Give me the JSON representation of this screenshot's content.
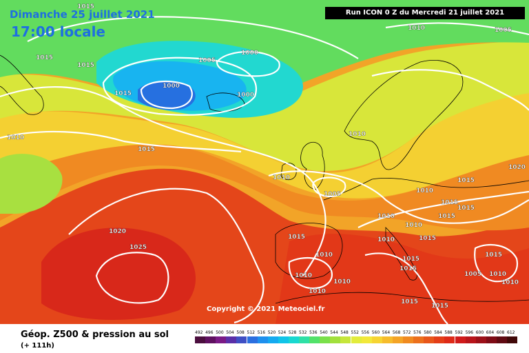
{
  "header": {
    "date": "Dimanche 25 juillet 2021",
    "time": "17:00 locale",
    "run": "Run ICON 0 Z du Mercredi 21 juillet 2021"
  },
  "copyright": "Copyright © 2021 Meteociel.fr",
  "footer": {
    "title": "Géop. Z500 & pression au sol",
    "subtitle": "(+ 111h)"
  },
  "legend": {
    "labels": [
      "492",
      "496",
      "500",
      "504",
      "508",
      "512",
      "516",
      "520",
      "524",
      "528",
      "532",
      "536",
      "540",
      "544",
      "548",
      "552",
      "556",
      "560",
      "564",
      "568",
      "572",
      "576",
      "580",
      "584",
      "588",
      "592",
      "596",
      "600",
      "604",
      "608",
      "612"
    ],
    "colors": [
      "#4b0e3e",
      "#5f1060",
      "#7a1a86",
      "#5a2fa8",
      "#3f4fc4",
      "#2b6fe0",
      "#1e90ee",
      "#14aaf0",
      "#10c4e8",
      "#18d8d0",
      "#2ee0a6",
      "#52e26a",
      "#7ae04a",
      "#a2e03c",
      "#c6e63a",
      "#e2ec3c",
      "#f2e83a",
      "#f6d432",
      "#f6bc2c",
      "#f4a426",
      "#f08a20",
      "#ec701c",
      "#e8561a",
      "#e43e18",
      "#de2a18",
      "#d01a1a",
      "#b8141a",
      "#9c1018",
      "#7e0c16",
      "#600a12",
      "#400808"
    ]
  },
  "pressure_labels": [
    {
      "text": "1015"
    },
    {
      "text": "1015"
    },
    {
      "text": "1015"
    },
    {
      "text": "1010"
    },
    {
      "text": "1005"
    },
    {
      "text": "1000"
    },
    {
      "text": "1005"
    },
    {
      "text": "1000"
    },
    {
      "text": "1000"
    },
    {
      "text": "1010"
    },
    {
      "text": "1015"
    },
    {
      "text": "1010"
    },
    {
      "text": "1005"
    },
    {
      "text": "1015"
    },
    {
      "text": "1010"
    },
    {
      "text": "1020"
    },
    {
      "text": "1025"
    },
    {
      "text": "1010"
    },
    {
      "text": "1015"
    },
    {
      "text": "1010"
    },
    {
      "text": "1010"
    },
    {
      "text": "1015"
    },
    {
      "text": "1015"
    },
    {
      "text": "1020"
    },
    {
      "text": "1010"
    },
    {
      "text": "1015"
    },
    {
      "text": "1015"
    },
    {
      "text": "1015"
    },
    {
      "text": "1015"
    },
    {
      "text": "1010"
    },
    {
      "text": "1015"
    },
    {
      "text": "1015"
    },
    {
      "text": "1010"
    },
    {
      "text": "1015"
    },
    {
      "text": "1010"
    },
    {
      "text": "1015"
    },
    {
      "text": "1010"
    },
    {
      "text": "1010"
    },
    {
      "text": "1005"
    },
    {
      "text": "1010"
    }
  ]
}
